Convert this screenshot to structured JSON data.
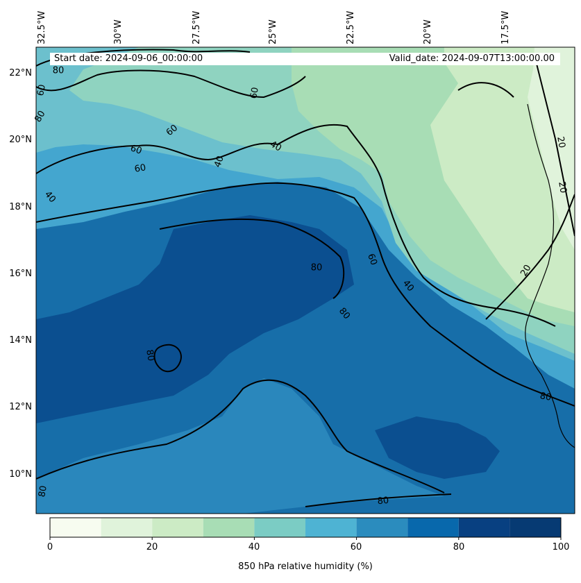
{
  "map": {
    "start_label": "Start date: 2024-09-06_00:00:00",
    "valid_label": "Valid_date: 2024-09-07T13:00:00.00",
    "lon_ticks": [
      "32.5°W",
      "30°W",
      "27.5°W",
      "25°W",
      "22.5°W",
      "20°W",
      "17.5°W"
    ],
    "lat_ticks": [
      "22°N",
      "20°N",
      "18°N",
      "16°N",
      "14°N",
      "12°N",
      "10°N"
    ],
    "contour_labels": [
      "80",
      "60",
      "80",
      "60",
      "60",
      "60",
      "40",
      "40",
      "40",
      "60",
      "20",
      "20",
      "20",
      "80",
      "60",
      "40",
      "80",
      "80",
      "80",
      "80",
      "80"
    ],
    "colorbar": {
      "title": "850 hPa relative humidity (%)",
      "ticks": [
        "0",
        "20",
        "40",
        "60",
        "80",
        "100"
      ],
      "levels": [
        0,
        10,
        20,
        30,
        40,
        50,
        60,
        70,
        80,
        90,
        100
      ],
      "colors": [
        "#f7fcf0",
        "#e0f3db",
        "#ccebc5",
        "#a8ddb5",
        "#7bccc4",
        "#4eb3d3",
        "#2b8cbe",
        "#0868ac",
        "#084081",
        "#063a73"
      ]
    },
    "field_colors": {
      "rh_20_30": "#ccebc5",
      "rh_30_40": "#a8ddb5",
      "rh_40_50": "#8fd3c0",
      "rh_50_60": "#6cc0cd",
      "rh_60_70": "#44a6cf",
      "rh_70_80": "#2a87bc",
      "rh_80_90": "#176ea9",
      "rh_90_100": "#0b4f90"
    }
  }
}
